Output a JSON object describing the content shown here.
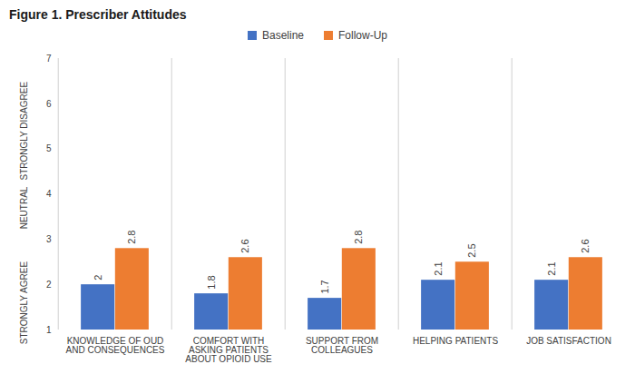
{
  "chart_data": {
    "type": "bar",
    "title": "Figure 1. Prescriber Attitudes",
    "categories": [
      "KNOWLEDGE OF OUD AND CONSEQUENCES",
      "COMFORT WITH ASKING PATIENTS ABOUT OPIOID USE",
      "SUPPORT FROM COLLEAGUES",
      "HELPING PATIENTS",
      "JOB SATISFACTION"
    ],
    "series": [
      {
        "name": "Baseline",
        "color": "#4472c4",
        "values": [
          2,
          1.8,
          1.7,
          2.1,
          2.1
        ]
      },
      {
        "name": "Follow-Up",
        "color": "#ed7d31",
        "values": [
          2.8,
          2.6,
          2.8,
          2.5,
          2.6
        ]
      }
    ],
    "ylim": [
      1,
      7
    ],
    "yticks": [
      1,
      2,
      3,
      4,
      5,
      6,
      7
    ],
    "annotations": [
      {
        "text": "STRONGLY AGREE",
        "y": 1.6
      },
      {
        "text": "NEUTRAL",
        "y": 3.7
      },
      {
        "text": "STRONGLY DISAGREE",
        "y": 5.4
      }
    ],
    "data_labels": true,
    "grid": false,
    "legend": "top"
  }
}
